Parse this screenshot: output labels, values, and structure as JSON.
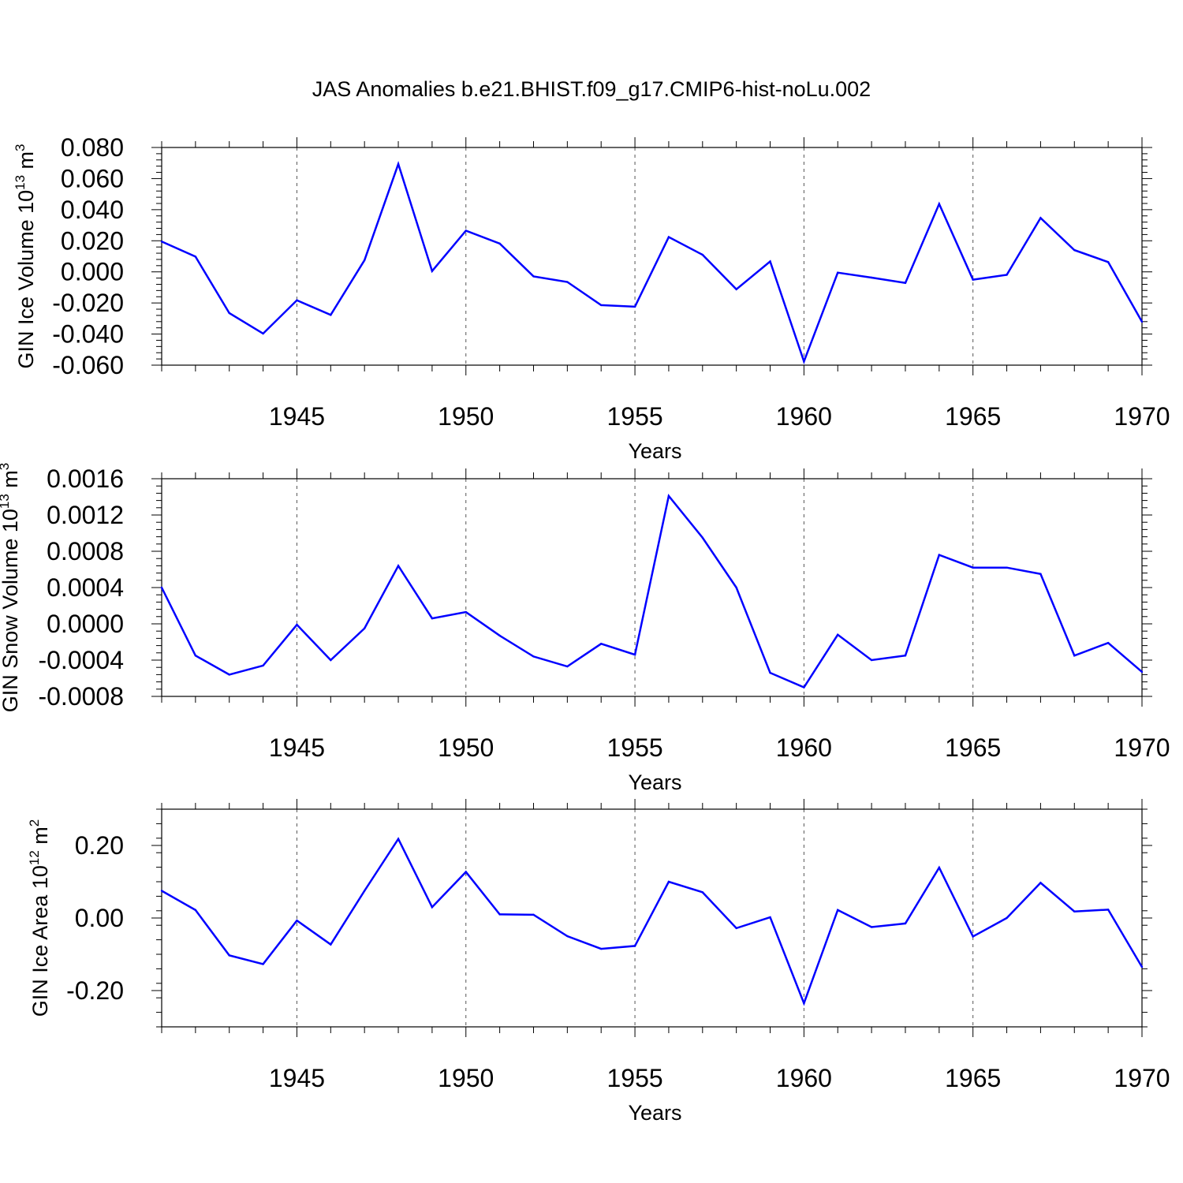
{
  "title": "JAS Anomalies b.e21.BHIST.f09_g17.CMIP6-hist-noLu.002",
  "colors": {
    "line": "#0000ff",
    "axis": "#000000",
    "grid": "#555555"
  },
  "chart_data": [
    {
      "type": "line",
      "ylabel": "GIN Ice Volume 10",
      "ylabel_exp": "13",
      "ylabel_unit": " m",
      "ylabel_unit_exp": "3",
      "xlabel": "Years",
      "xlim": [
        1941,
        1970
      ],
      "ylim": [
        -0.06,
        0.08
      ],
      "yticks": [
        -0.06,
        -0.04,
        -0.02,
        0.0,
        0.02,
        0.04,
        0.06,
        0.08
      ],
      "ytick_labels": [
        "-0.060",
        "-0.040",
        "-0.020",
        "0.000",
        "0.020",
        "0.040",
        "0.060",
        "0.080"
      ],
      "xticks": [
        1945,
        1950,
        1955,
        1960,
        1965,
        1970
      ],
      "xtick_labels": [
        "1945",
        "1950",
        "1955",
        "1960",
        "1965",
        "1970"
      ],
      "x": [
        1941,
        1942,
        1943,
        1944,
        1945,
        1946,
        1947,
        1948,
        1949,
        1950,
        1951,
        1952,
        1953,
        1954,
        1955,
        1956,
        1957,
        1958,
        1959,
        1960,
        1961,
        1962,
        1963,
        1964,
        1965,
        1966,
        1967,
        1968,
        1969,
        1970
      ],
      "values": [
        0.0195,
        0.0098,
        -0.0265,
        -0.0397,
        -0.0183,
        -0.0277,
        0.0075,
        0.0694,
        0.0005,
        0.0265,
        0.0182,
        -0.0029,
        -0.0065,
        -0.0214,
        -0.0224,
        0.0224,
        0.011,
        -0.0112,
        0.0067,
        -0.0576,
        -0.0005,
        -0.0037,
        -0.0071,
        0.0437,
        -0.005,
        -0.0019,
        0.0347,
        0.014,
        0.0063,
        -0.0321
      ]
    },
    {
      "type": "line",
      "ylabel": "GIN Snow Volume 10",
      "ylabel_exp": "13",
      "ylabel_unit": " m",
      "ylabel_unit_exp": "3",
      "xlabel": "Years",
      "xlim": [
        1941,
        1970
      ],
      "ylim": [
        -0.0008,
        0.0016
      ],
      "yticks": [
        -0.0008,
        -0.0004,
        0.0,
        0.0004,
        0.0008,
        0.0012,
        0.0016
      ],
      "ytick_labels": [
        "-0.0008",
        "-0.0004",
        "0.0000",
        "0.0004",
        "0.0008",
        "0.0012",
        "0.0016"
      ],
      "xticks": [
        1945,
        1950,
        1955,
        1960,
        1965,
        1970
      ],
      "xtick_labels": [
        "1945",
        "1950",
        "1955",
        "1960",
        "1965",
        "1970"
      ],
      "x": [
        1941,
        1942,
        1943,
        1944,
        1945,
        1946,
        1947,
        1948,
        1949,
        1950,
        1951,
        1952,
        1953,
        1954,
        1955,
        1956,
        1957,
        1958,
        1959,
        1960,
        1961,
        1962,
        1963,
        1964,
        1965,
        1966,
        1967,
        1968,
        1969,
        1970
      ],
      "values": [
        0.0004,
        -0.00035,
        -0.00056,
        -0.00046,
        -1e-05,
        -0.0004,
        -5e-05,
        0.00064,
        6e-05,
        0.00013,
        -0.00013,
        -0.00036,
        -0.00047,
        -0.00022,
        -0.00034,
        0.00141,
        0.00095,
        0.0004,
        -0.00054,
        -0.0007,
        -0.00012,
        -0.0004,
        -0.00035,
        0.00076,
        0.00062,
        0.00062,
        0.00055,
        -0.00035,
        -0.00021,
        -0.00053
      ]
    },
    {
      "type": "line",
      "ylabel": "GIN Ice Area 10",
      "ylabel_exp": "12",
      "ylabel_unit": " m",
      "ylabel_unit_exp": "2",
      "xlabel": "Years",
      "xlim": [
        1941,
        1970
      ],
      "ylim": [
        -0.3,
        0.3
      ],
      "yticks": [
        -0.2,
        0.0,
        0.2
      ],
      "ytick_labels": [
        "-0.20",
        "0.00",
        "0.20"
      ],
      "xticks": [
        1945,
        1950,
        1955,
        1960,
        1965,
        1970
      ],
      "xtick_labels": [
        "1945",
        "1950",
        "1955",
        "1960",
        "1965",
        "1970"
      ],
      "x": [
        1941,
        1942,
        1943,
        1944,
        1945,
        1946,
        1947,
        1948,
        1949,
        1950,
        1951,
        1952,
        1953,
        1954,
        1955,
        1956,
        1957,
        1958,
        1959,
        1960,
        1961,
        1962,
        1963,
        1964,
        1965,
        1966,
        1967,
        1968,
        1969,
        1970
      ],
      "values": [
        0.075,
        0.022,
        -0.103,
        -0.127,
        -0.007,
        -0.073,
        0.075,
        0.218,
        0.03,
        0.127,
        0.01,
        0.009,
        -0.05,
        -0.085,
        -0.077,
        0.1,
        0.071,
        -0.028,
        0.002,
        -0.235,
        0.022,
        -0.025,
        -0.015,
        0.139,
        -0.051,
        0.0,
        0.097,
        0.018,
        0.023,
        -0.135
      ]
    }
  ]
}
